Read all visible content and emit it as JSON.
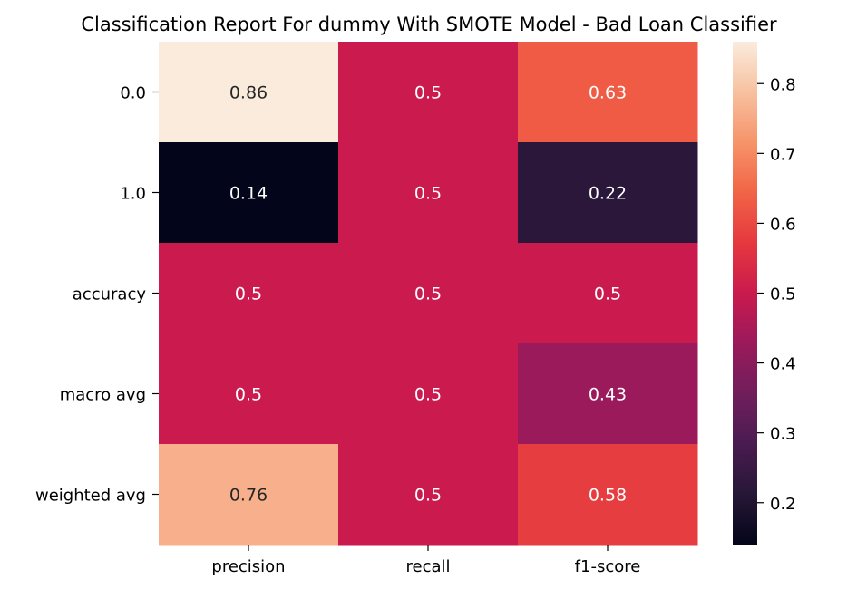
{
  "chart_data": {
    "type": "heatmap",
    "title": "Classification Report For dummy With SMOTE Model - Bad Loan Classifier",
    "columns": [
      "precision",
      "recall",
      "f1-score"
    ],
    "rows": [
      "0.0",
      "1.0",
      "accuracy",
      "macro avg",
      "weighted avg"
    ],
    "values": [
      [
        0.86,
        0.5,
        0.63
      ],
      [
        0.14,
        0.5,
        0.22
      ],
      [
        0.5,
        0.5,
        0.5
      ],
      [
        0.5,
        0.5,
        0.43
      ],
      [
        0.76,
        0.5,
        0.58
      ]
    ],
    "colorbar": {
      "colormap": "rocket",
      "vmin": 0.14,
      "vmax": 0.86,
      "ticks": [
        0.2,
        0.3,
        0.4,
        0.5,
        0.6,
        0.7,
        0.8
      ]
    }
  }
}
